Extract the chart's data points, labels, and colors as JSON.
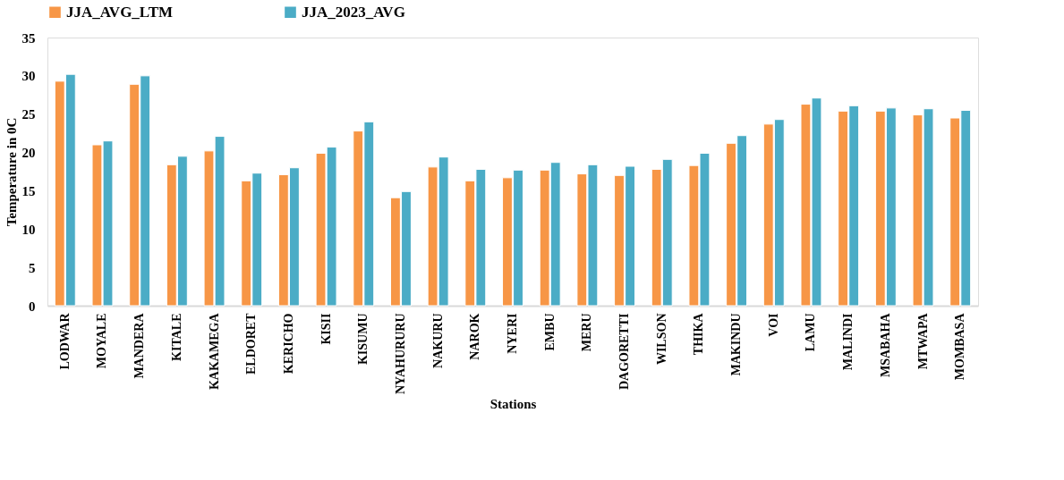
{
  "chart_data": {
    "type": "bar",
    "xlabel": "Stations",
    "ylabel": "Temperature in 0C",
    "categories": [
      "LODWAR",
      "MOYALE",
      "MANDERA",
      "KITALE",
      "KAKAMEGA",
      "ELDORET",
      "KERICHO",
      "KISII",
      "KISUMU",
      "NYAHURURU",
      "NAKURU",
      "NAROK",
      "NYERI",
      "EMBU",
      "MERU",
      "DAGORETTI",
      "WILSON",
      "THIKA",
      "MAKINDU",
      "VOI",
      "LAMU",
      "MALINDI",
      "MSABAHA",
      "MTWAPA",
      "MOMBASA"
    ],
    "series": [
      {
        "name": "JJA_AVG_LTM",
        "color": "#f79646",
        "values": [
          29.3,
          21.0,
          28.9,
          18.4,
          20.2,
          16.3,
          17.1,
          19.9,
          22.8,
          14.1,
          18.1,
          16.3,
          16.7,
          17.7,
          17.2,
          17.0,
          17.8,
          18.3,
          21.2,
          23.7,
          26.3,
          25.4,
          25.4,
          24.9,
          24.5
        ]
      },
      {
        "name": "JJA_2023_AVG",
        "color": "#4bacc6",
        "values": [
          30.2,
          21.5,
          30.0,
          19.5,
          22.1,
          17.3,
          18.0,
          20.7,
          24.0,
          14.9,
          19.4,
          17.8,
          17.7,
          18.7,
          18.4,
          18.2,
          19.1,
          19.9,
          22.2,
          24.3,
          27.1,
          26.1,
          25.8,
          25.7,
          25.5
        ]
      }
    ],
    "ylim": [
      0,
      35
    ],
    "yticks": [
      0,
      5,
      10,
      15,
      20,
      25,
      30,
      35
    ],
    "grid": false,
    "legend": "top"
  }
}
